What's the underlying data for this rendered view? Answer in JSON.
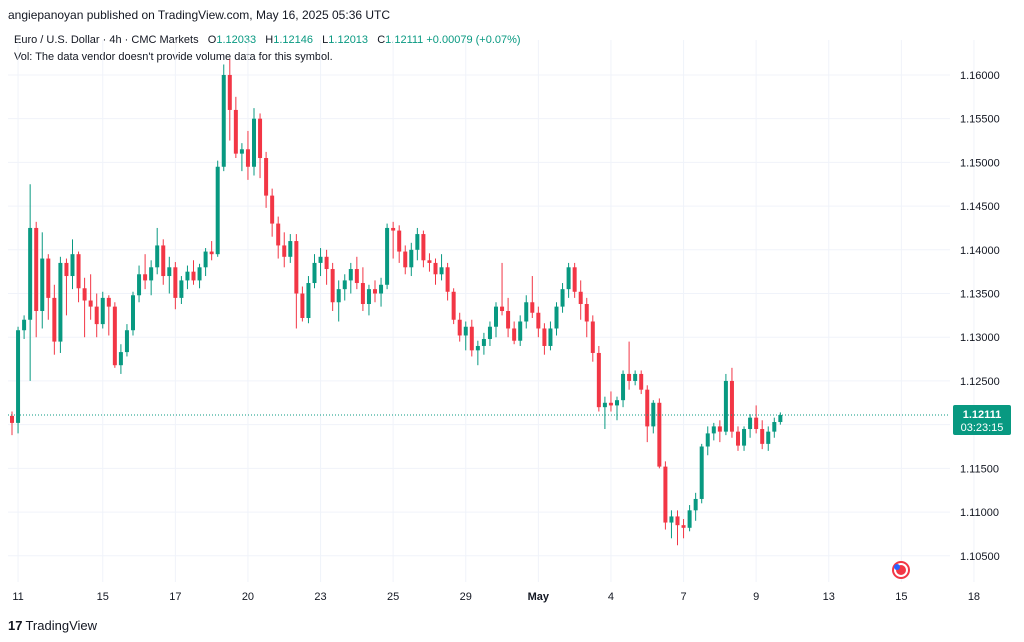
{
  "header": {
    "publish_line": "angiepanoyan published on TradingView.com, May 16, 2025 05:36 UTC"
  },
  "legend": {
    "symbol": "Euro / U.S. Dollar · 4h · CMC Markets",
    "o_label": "O",
    "o_value": "1.12033",
    "h_label": "H",
    "h_value": "1.12146",
    "l_label": "L",
    "l_value": "1.12013",
    "c_label": "C",
    "c_value": "1.12111",
    "change": "+0.00079 (+0.07%)",
    "vol_note": "Vol: The data vendor doesn't provide volume data for this symbol."
  },
  "price_badge": {
    "price": "1.12111",
    "countdown": "03:23:15"
  },
  "footer": {
    "logo_text": "TradingView"
  },
  "colors": {
    "up": "#089981",
    "down": "#F23645",
    "grid": "#F0F3FA",
    "axis_text": "#131722",
    "price_line": "#089981"
  },
  "chart_data": {
    "type": "candlestick",
    "title": "Euro / U.S. Dollar · 4h · CMC Markets",
    "timeframe": "4h",
    "ylim": [
      1.102,
      1.164
    ],
    "y_ticks": [
      "1.10500",
      "1.11000",
      "1.11500",
      "1.12000",
      "1.12500",
      "1.13000",
      "1.13500",
      "1.14000",
      "1.14500",
      "1.15000",
      "1.15500",
      "1.16000"
    ],
    "x_ticks": [
      {
        "label": "11",
        "index": 1
      },
      {
        "label": "15",
        "index": 15
      },
      {
        "label": "17",
        "index": 27
      },
      {
        "label": "20",
        "index": 39
      },
      {
        "label": "23",
        "index": 51
      },
      {
        "label": "25",
        "index": 63
      },
      {
        "label": "29",
        "index": 75
      },
      {
        "label": "May",
        "index": 87
      },
      {
        "label": "4",
        "index": 99
      },
      {
        "label": "7",
        "index": 111
      },
      {
        "label": "9",
        "index": 123
      },
      {
        "label": "13",
        "index": 135
      },
      {
        "label": "15",
        "index": 147
      },
      {
        "label": "18",
        "index": 159
      }
    ],
    "last_price": 1.12111,
    "candles": [
      [
        1.121,
        1.1215,
        1.1188,
        1.1202
      ],
      [
        1.1202,
        1.1312,
        1.119,
        1.1308
      ],
      [
        1.1308,
        1.1325,
        1.1298,
        1.132
      ],
      [
        1.132,
        1.1475,
        1.125,
        1.1425
      ],
      [
        1.1425,
        1.1432,
        1.13,
        1.133
      ],
      [
        1.133,
        1.142,
        1.131,
        1.139
      ],
      [
        1.139,
        1.1395,
        1.132,
        1.1345
      ],
      [
        1.1345,
        1.136,
        1.128,
        1.1295
      ],
      [
        1.1295,
        1.1392,
        1.1282,
        1.1385
      ],
      [
        1.1385,
        1.139,
        1.1325,
        1.137
      ],
      [
        1.137,
        1.1412,
        1.1355,
        1.1395
      ],
      [
        1.1395,
        1.1398,
        1.134,
        1.1356
      ],
      [
        1.1356,
        1.1368,
        1.13,
        1.1342
      ],
      [
        1.1342,
        1.1372,
        1.132,
        1.1335
      ],
      [
        1.1335,
        1.135,
        1.13,
        1.1315
      ],
      [
        1.1315,
        1.1352,
        1.131,
        1.1345
      ],
      [
        1.1345,
        1.1348,
        1.1302,
        1.1335
      ],
      [
        1.1335,
        1.134,
        1.1265,
        1.1268
      ],
      [
        1.1268,
        1.1292,
        1.1258,
        1.1283
      ],
      [
        1.1283,
        1.1315,
        1.1278,
        1.1308
      ],
      [
        1.1308,
        1.1352,
        1.1302,
        1.1348
      ],
      [
        1.1348,
        1.1382,
        1.134,
        1.1372
      ],
      [
        1.1372,
        1.1395,
        1.1355,
        1.1365
      ],
      [
        1.1365,
        1.1388,
        1.1348,
        1.138
      ],
      [
        1.138,
        1.1425,
        1.1372,
        1.1405
      ],
      [
        1.1405,
        1.1412,
        1.136,
        1.137
      ],
      [
        1.137,
        1.1392,
        1.135,
        1.138
      ],
      [
        1.138,
        1.1386,
        1.1332,
        1.1345
      ],
      [
        1.1345,
        1.137,
        1.1338,
        1.1365
      ],
      [
        1.1365,
        1.1382,
        1.1355,
        1.1375
      ],
      [
        1.1375,
        1.1388,
        1.136,
        1.1365
      ],
      [
        1.1365,
        1.1384,
        1.1356,
        1.138
      ],
      [
        1.138,
        1.1402,
        1.137,
        1.1398
      ],
      [
        1.1398,
        1.141,
        1.1388,
        1.1395
      ],
      [
        1.1395,
        1.1502,
        1.1392,
        1.1495
      ],
      [
        1.1495,
        1.1612,
        1.149,
        1.16
      ],
      [
        1.16,
        1.1618,
        1.1525,
        1.156
      ],
      [
        1.156,
        1.1575,
        1.1505,
        1.151
      ],
      [
        1.151,
        1.1522,
        1.149,
        1.1515
      ],
      [
        1.1515,
        1.1536,
        1.148,
        1.1495
      ],
      [
        1.1495,
        1.1562,
        1.1485,
        1.155
      ],
      [
        1.155,
        1.1556,
        1.1482,
        1.1505
      ],
      [
        1.1505,
        1.1512,
        1.1448,
        1.1462
      ],
      [
        1.1462,
        1.147,
        1.1415,
        1.143
      ],
      [
        1.143,
        1.1438,
        1.139,
        1.1405
      ],
      [
        1.1405,
        1.142,
        1.138,
        1.1392
      ],
      [
        1.1392,
        1.1418,
        1.1385,
        1.141
      ],
      [
        1.141,
        1.1418,
        1.131,
        1.135
      ],
      [
        1.135,
        1.1358,
        1.1318,
        1.1322
      ],
      [
        1.1322,
        1.137,
        1.1316,
        1.1362
      ],
      [
        1.1362,
        1.1395,
        1.1356,
        1.1385
      ],
      [
        1.1385,
        1.1402,
        1.137,
        1.1392
      ],
      [
        1.1392,
        1.14,
        1.136,
        1.1378
      ],
      [
        1.1378,
        1.1385,
        1.133,
        1.134
      ],
      [
        1.134,
        1.1365,
        1.1318,
        1.1355
      ],
      [
        1.1355,
        1.1372,
        1.1342,
        1.1365
      ],
      [
        1.1365,
        1.1385,
        1.135,
        1.1378
      ],
      [
        1.1378,
        1.1392,
        1.1355,
        1.1362
      ],
      [
        1.1362,
        1.138,
        1.133,
        1.1338
      ],
      [
        1.1338,
        1.136,
        1.1325,
        1.1355
      ],
      [
        1.1355,
        1.1365,
        1.134,
        1.135
      ],
      [
        1.135,
        1.1368,
        1.1335,
        1.136
      ],
      [
        1.136,
        1.143,
        1.1355,
        1.1425
      ],
      [
        1.1425,
        1.1432,
        1.139,
        1.1422
      ],
      [
        1.1422,
        1.1428,
        1.1385,
        1.1398
      ],
      [
        1.1398,
        1.1405,
        1.1372,
        1.138
      ],
      [
        1.138,
        1.1408,
        1.137,
        1.14
      ],
      [
        1.14,
        1.1425,
        1.1388,
        1.1418
      ],
      [
        1.1418,
        1.1422,
        1.138,
        1.1388
      ],
      [
        1.1388,
        1.1396,
        1.1375,
        1.1385
      ],
      [
        1.1385,
        1.139,
        1.136,
        1.1372
      ],
      [
        1.1372,
        1.1395,
        1.1365,
        1.138
      ],
      [
        1.138,
        1.1385,
        1.1342,
        1.1352
      ],
      [
        1.1352,
        1.1356,
        1.1315,
        1.132
      ],
      [
        1.132,
        1.1328,
        1.1295,
        1.1302
      ],
      [
        1.1302,
        1.1318,
        1.1285,
        1.1312
      ],
      [
        1.1312,
        1.132,
        1.1278,
        1.1285
      ],
      [
        1.1285,
        1.1296,
        1.1268,
        1.129
      ],
      [
        1.129,
        1.1305,
        1.128,
        1.1298
      ],
      [
        1.1298,
        1.1318,
        1.129,
        1.1312
      ],
      [
        1.1312,
        1.134,
        1.13,
        1.1335
      ],
      [
        1.1335,
        1.1385,
        1.1325,
        1.133
      ],
      [
        1.133,
        1.1345,
        1.13,
        1.131
      ],
      [
        1.131,
        1.1318,
        1.1292,
        1.1296
      ],
      [
        1.1296,
        1.1325,
        1.129,
        1.1318
      ],
      [
        1.1318,
        1.1348,
        1.131,
        1.134
      ],
      [
        1.134,
        1.137,
        1.1322,
        1.1328
      ],
      [
        1.1328,
        1.1335,
        1.13,
        1.131
      ],
      [
        1.131,
        1.1316,
        1.128,
        1.129
      ],
      [
        1.129,
        1.1318,
        1.1285,
        1.131
      ],
      [
        1.131,
        1.134,
        1.1302,
        1.1335
      ],
      [
        1.1335,
        1.1362,
        1.1328,
        1.1355
      ],
      [
        1.1355,
        1.1385,
        1.1345,
        1.138
      ],
      [
        1.138,
        1.1385,
        1.1345,
        1.1352
      ],
      [
        1.1352,
        1.1365,
        1.132,
        1.1338
      ],
      [
        1.1338,
        1.1345,
        1.13,
        1.1318
      ],
      [
        1.1318,
        1.1325,
        1.1272,
        1.1282
      ],
      [
        1.1282,
        1.129,
        1.1215,
        1.122
      ],
      [
        1.122,
        1.1232,
        1.1195,
        1.1225
      ],
      [
        1.1225,
        1.1238,
        1.1215,
        1.1222
      ],
      [
        1.1222,
        1.1232,
        1.1205,
        1.1228
      ],
      [
        1.1228,
        1.1262,
        1.122,
        1.1258
      ],
      [
        1.1258,
        1.1295,
        1.124,
        1.125
      ],
      [
        1.125,
        1.1262,
        1.1245,
        1.1258
      ],
      [
        1.1258,
        1.1262,
        1.1235,
        1.124
      ],
      [
        1.124,
        1.1245,
        1.118,
        1.1198
      ],
      [
        1.1198,
        1.1228,
        1.119,
        1.1225
      ],
      [
        1.1225,
        1.123,
        1.115,
        1.1152
      ],
      [
        1.1152,
        1.1158,
        1.108,
        1.1088
      ],
      [
        1.1088,
        1.1102,
        1.107,
        1.1095
      ],
      [
        1.1095,
        1.1102,
        1.1062,
        1.1085
      ],
      [
        1.1085,
        1.1092,
        1.107,
        1.1082
      ],
      [
        1.1082,
        1.1108,
        1.1078,
        1.1102
      ],
      [
        1.1102,
        1.1122,
        1.109,
        1.1115
      ],
      [
        1.1115,
        1.1178,
        1.111,
        1.1175
      ],
      [
        1.1175,
        1.1198,
        1.1165,
        1.119
      ],
      [
        1.119,
        1.1202,
        1.1182,
        1.1198
      ],
      [
        1.1198,
        1.1205,
        1.118,
        1.1192
      ],
      [
        1.1192,
        1.1258,
        1.1188,
        1.125
      ],
      [
        1.125,
        1.1265,
        1.1185,
        1.1192
      ],
      [
        1.1192,
        1.1198,
        1.117,
        1.1176
      ],
      [
        1.1176,
        1.1198,
        1.117,
        1.1195
      ],
      [
        1.1195,
        1.1212,
        1.1185,
        1.1208
      ],
      [
        1.1208,
        1.1222,
        1.119,
        1.1195
      ],
      [
        1.1195,
        1.1205,
        1.1172,
        1.1178
      ],
      [
        1.1178,
        1.1198,
        1.117,
        1.1192
      ],
      [
        1.1192,
        1.1208,
        1.1185,
        1.1203
      ],
      [
        1.1203,
        1.1214,
        1.12,
        1.1211
      ]
    ]
  }
}
